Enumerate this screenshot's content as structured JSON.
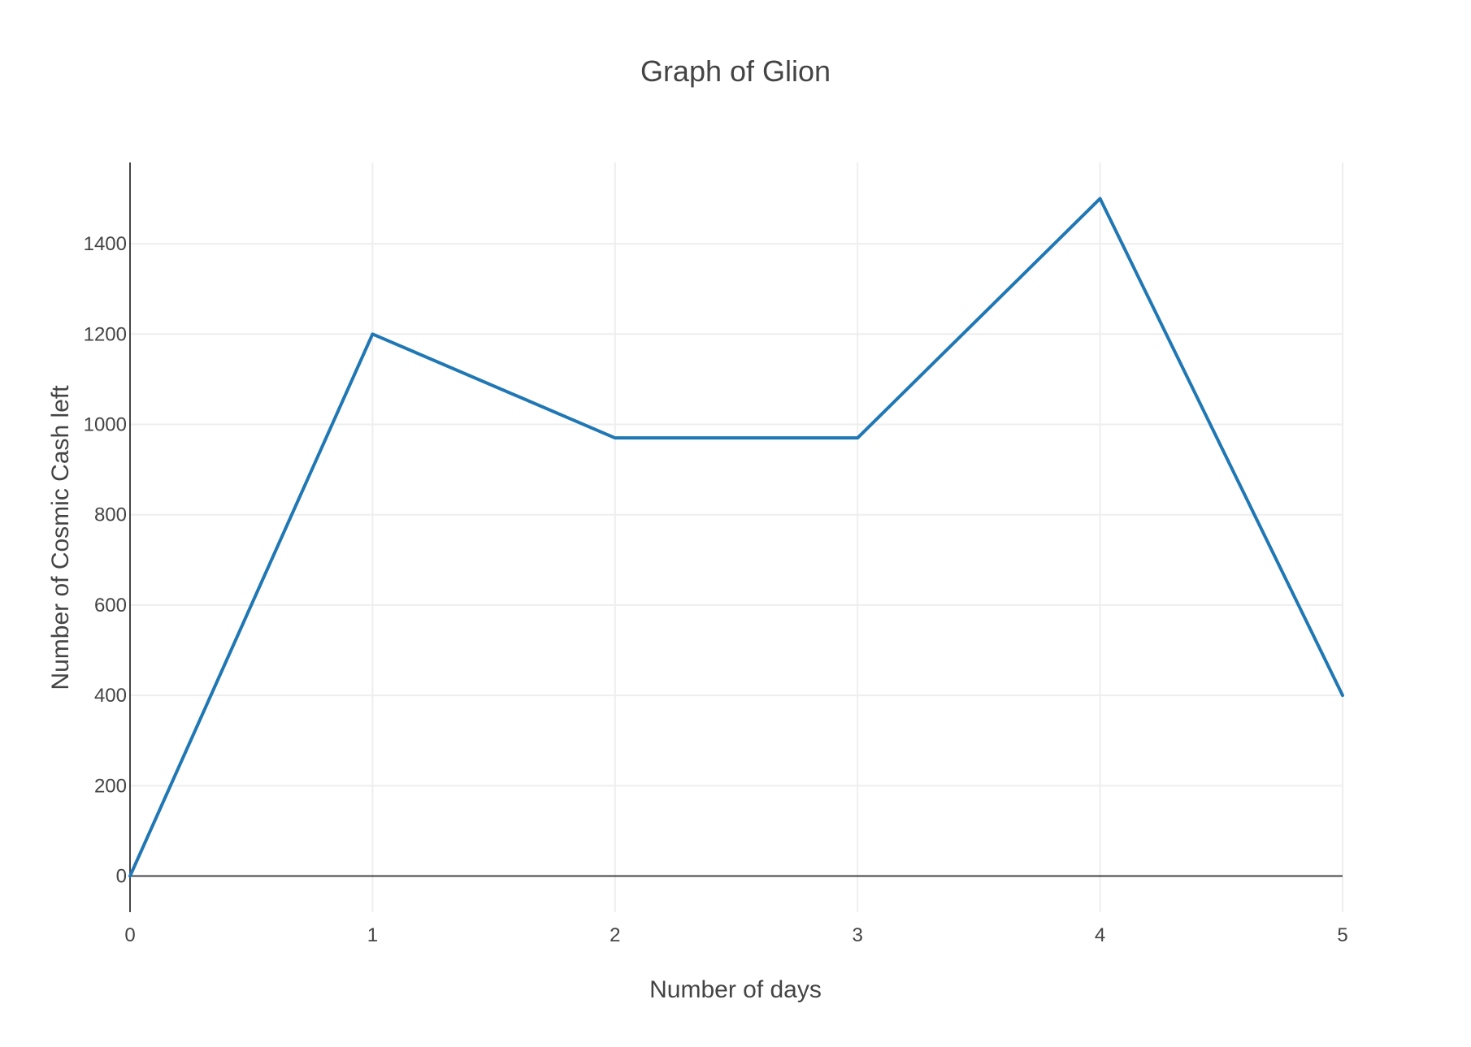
{
  "chart_data": {
    "type": "line",
    "title": "Graph of Glion",
    "xlabel": "Number of days",
    "ylabel": "Number of Cosmic Cash left",
    "x": [
      0,
      1,
      2,
      3,
      4,
      5
    ],
    "series": [
      {
        "values": [
          0,
          1200,
          970,
          970,
          1500,
          400
        ],
        "color": "#1f77b4"
      }
    ],
    "xlim": [
      0,
      5
    ],
    "ylim": [
      -80,
      1580
    ],
    "x_ticks": [
      0,
      1,
      2,
      3,
      4,
      5
    ],
    "y_ticks": [
      0,
      200,
      400,
      600,
      800,
      1000,
      1200,
      1400
    ],
    "grid": true,
    "legend": "none"
  }
}
